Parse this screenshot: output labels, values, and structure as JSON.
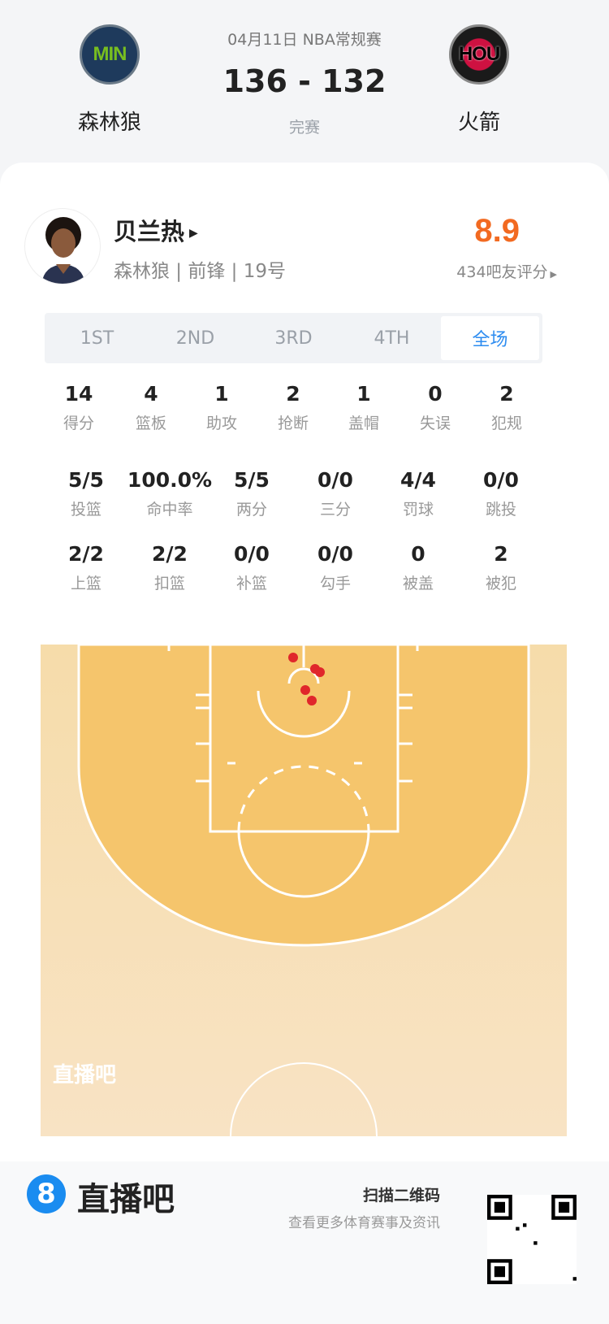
{
  "match": {
    "date_type": "04月11日 NBA常规赛",
    "score": "136 - 132",
    "status": "完赛",
    "home": {
      "abbr": "MIN",
      "name": "森林狼",
      "color": "#1e3a5c",
      "accent": "#78be20"
    },
    "away": {
      "abbr": "HOU",
      "name": "火箭",
      "color": "#1a1a1a",
      "accent": "#ce1141"
    }
  },
  "player": {
    "name": "贝兰热",
    "info": "森林狼 | 前锋 | 19号",
    "rating": "8.9",
    "rating_color": "#f26a21",
    "rating_count": "434吧友评分"
  },
  "tabs": [
    {
      "label": "1ST"
    },
    {
      "label": "2ND"
    },
    {
      "label": "3RD"
    },
    {
      "label": "4TH"
    },
    {
      "label": "全场",
      "active": true
    }
  ],
  "stats_row1": [
    {
      "v": "14",
      "l": "得分"
    },
    {
      "v": "4",
      "l": "篮板"
    },
    {
      "v": "1",
      "l": "助攻"
    },
    {
      "v": "2",
      "l": "抢断"
    },
    {
      "v": "1",
      "l": "盖帽"
    },
    {
      "v": "0",
      "l": "失误"
    },
    {
      "v": "2",
      "l": "犯规"
    }
  ],
  "stats_row2": [
    {
      "v": "5/5",
      "l": "投篮"
    },
    {
      "v": "100.0%",
      "l": "命中率"
    },
    {
      "v": "5/5",
      "l": "两分"
    },
    {
      "v": "0/0",
      "l": "三分"
    },
    {
      "v": "4/4",
      "l": "罚球"
    },
    {
      "v": "0/0",
      "l": "跳投"
    }
  ],
  "stats_row3": [
    {
      "v": "2/2",
      "l": "上篮"
    },
    {
      "v": "2/2",
      "l": "扣篮"
    },
    {
      "v": "0/0",
      "l": "补篮"
    },
    {
      "v": "0/0",
      "l": "勾手"
    },
    {
      "v": "0",
      "l": "被盖"
    },
    {
      "v": "2",
      "l": "被犯"
    }
  ],
  "shot_chart": {
    "watermark": "直播吧",
    "made_color": "#e0262b",
    "shots_made": 5,
    "shots_missed": 0
  },
  "footer": {
    "brand": "直播吧",
    "brand_icon": "8",
    "brand_color": "#1a8cf0",
    "qr_title": "扫描二维码",
    "qr_subtitle": "查看更多体育赛事及资讯"
  }
}
